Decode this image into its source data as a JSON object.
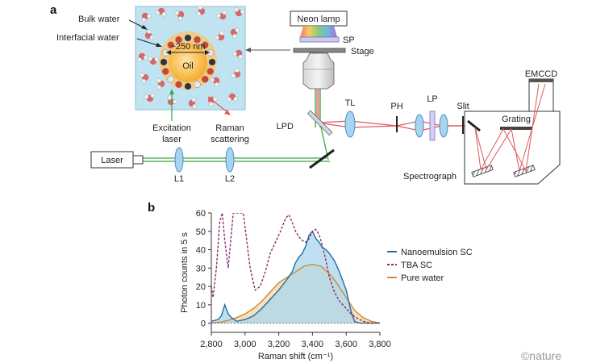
{
  "panel_a": {
    "label": "a",
    "labels": {
      "bulk_water": "Bulk water",
      "interfacial_water": "Interfacial water",
      "size": "~250 nm",
      "oil": "Oil",
      "neon_lamp": "Neon lamp",
      "sp": "SP",
      "stage": "Stage",
      "excitation_line1": "Excitation",
      "excitation_line2": "laser",
      "raman_line1": "Raman",
      "raman_line2": "scattering",
      "lpd": "LPD",
      "tl": "TL",
      "ph": "PH",
      "lp": "LP",
      "slit": "Slit",
      "grating": "Grating",
      "emccd": "EMCCD",
      "spectrograph": "Spectrograph",
      "laser": "Laser",
      "l1": "L1",
      "l2": "L2"
    },
    "colors": {
      "water_bg": "#bfe3f0",
      "oil": "#f5a623",
      "oil_halo": "#f7c77d",
      "laser_green": "#3aa845",
      "raman_red": "#e0575a"
    }
  },
  "panel_b": {
    "label": "b",
    "credit": "©nature"
  },
  "chart_data": {
    "type": "line",
    "xlabel": "Raman shift (cm⁻¹)",
    "ylabel": "Photon counts in 5 s",
    "xlim": [
      2800,
      3800
    ],
    "ylim": [
      -5,
      60
    ],
    "xticks": [
      2800,
      3000,
      3200,
      3400,
      3600,
      3800
    ],
    "xtick_labels": [
      "2,800",
      "3,000",
      "3,200",
      "3,400",
      "3,600",
      "3,800"
    ],
    "yticks": [
      0,
      10,
      20,
      30,
      40,
      50,
      60
    ],
    "legend_position": "right",
    "series": [
      {
        "name": "Nanoemulsion SC",
        "style": "solid",
        "color": "#1f6fa8",
        "fill": "#a9d6ec",
        "x": [
          2800,
          2840,
          2860,
          2880,
          2900,
          2920,
          2950,
          3000,
          3050,
          3100,
          3150,
          3200,
          3250,
          3280,
          3300,
          3320,
          3340,
          3360,
          3380,
          3400,
          3420,
          3440,
          3460,
          3480,
          3500,
          3530,
          3560,
          3600,
          3630,
          3650,
          3680,
          3700,
          3750,
          3800
        ],
        "y": [
          1,
          2,
          4,
          10,
          5,
          3,
          1,
          2,
          4,
          8,
          13,
          18,
          24,
          28,
          33,
          36,
          38,
          42,
          48,
          50,
          46,
          44,
          41,
          40,
          38,
          34,
          28,
          18,
          6,
          1,
          0,
          0,
          0,
          0
        ]
      },
      {
        "name": "TBA SC",
        "style": "dashed",
        "color": "#8a2a6e",
        "x": [
          2800,
          2810,
          2830,
          2850,
          2865,
          2880,
          2900,
          2930,
          2960,
          2990,
          3010,
          3030,
          3060,
          3090,
          3120,
          3150,
          3180,
          3210,
          3240,
          3260,
          3280,
          3300,
          3320,
          3340,
          3360,
          3380,
          3400,
          3420,
          3440,
          3460,
          3480,
          3500,
          3530,
          3560,
          3600,
          3630,
          3660,
          3700,
          3750,
          3800
        ],
        "y": [
          20,
          14,
          30,
          55,
          60,
          45,
          30,
          60,
          60,
          60,
          45,
          30,
          18,
          20,
          28,
          38,
          44,
          50,
          57,
          59,
          55,
          50,
          47,
          45,
          44,
          46,
          50,
          51,
          48,
          42,
          34,
          25,
          17,
          12,
          8,
          5,
          3,
          1,
          0,
          0
        ]
      },
      {
        "name": "Pure water",
        "style": "solid",
        "color": "#c98a3c",
        "fill": "#f6d7a8",
        "x": [
          2800,
          2850,
          2900,
          2950,
          3000,
          3050,
          3100,
          3150,
          3200,
          3250,
          3300,
          3350,
          3400,
          3450,
          3500,
          3550,
          3600,
          3650,
          3700,
          3750,
          3800
        ],
        "y": [
          0,
          0.5,
          1.5,
          3,
          5,
          8,
          12,
          17,
          22,
          25,
          28,
          31,
          32,
          31,
          27,
          21,
          14,
          7,
          3,
          1,
          0
        ]
      }
    ]
  }
}
